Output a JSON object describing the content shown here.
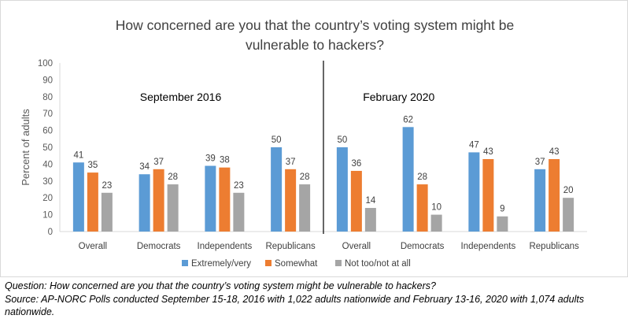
{
  "chart_data": {
    "type": "bar",
    "title_lines": [
      "How concerned are you that the country’s voting system might be",
      "vulnerable to hackers?"
    ],
    "ylabel": "Percent of adults",
    "ylim": [
      0,
      100
    ],
    "yticks": [
      0,
      10,
      20,
      30,
      40,
      50,
      60,
      70,
      80,
      90,
      100
    ],
    "categories": [
      "Overall",
      "Democrats",
      "Independents",
      "Republicans",
      "Overall",
      "Democrats",
      "Independents",
      "Republicans"
    ],
    "groups": [
      {
        "label": "September 2016",
        "categories": [
          "Overall",
          "Democrats",
          "Independents",
          "Republicans"
        ]
      },
      {
        "label": "February 2020",
        "categories": [
          "Overall",
          "Democrats",
          "Independents",
          "Republicans"
        ]
      }
    ],
    "series": [
      {
        "name": "Extremely/very",
        "color": "#5b9bd5",
        "values": [
          41,
          34,
          39,
          50,
          50,
          62,
          47,
          37
        ]
      },
      {
        "name": "Somewhat",
        "color": "#ed7d31",
        "values": [
          35,
          37,
          38,
          37,
          36,
          28,
          43,
          43
        ]
      },
      {
        "name": "Not too/not at all",
        "color": "#a5a5a5",
        "values": [
          23,
          28,
          23,
          28,
          14,
          10,
          9,
          20
        ]
      }
    ],
    "data_labels": true,
    "grid": false,
    "legend_position": "bottom"
  },
  "notes": {
    "question": "Question: How concerned are you that the country’s voting system might be vulnerable to hackers?",
    "source": "Source: AP-NORC Polls conducted September 15-18, 2016 with 1,022 adults nationwide and February 13-16, 2020 with 1,074 adults nationwide."
  }
}
